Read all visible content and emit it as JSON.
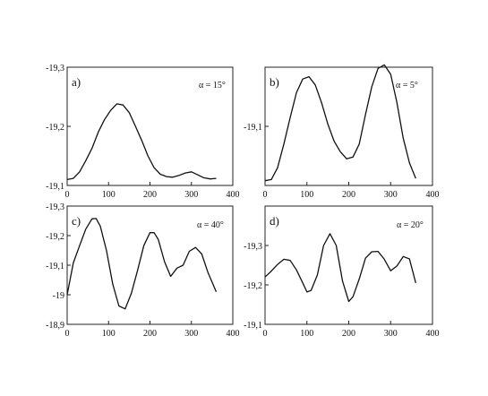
{
  "chart_data": [
    {
      "type": "line",
      "panel_label": "a)",
      "annotation": "α = 15°",
      "xlim": [
        0,
        400
      ],
      "ylim": [
        -19.3,
        -19.1
      ],
      "y_inverted": true,
      "x_ticks": [
        "0",
        "100",
        "200",
        "300",
        "400"
      ],
      "y_ticks": [
        {
          "value": -19.3,
          "label": "-19,3"
        },
        {
          "value": -19.2,
          "label": "-19,2"
        },
        {
          "value": -19.1,
          "label": "-19,1"
        }
      ],
      "series": [
        {
          "x": [
            0,
            15,
            30,
            45,
            60,
            75,
            90,
            105,
            120,
            135,
            150,
            165,
            180,
            195,
            210,
            225,
            240,
            255,
            270,
            285,
            300,
            315,
            330,
            345,
            360
          ],
          "y": [
            -19.11,
            -19.112,
            -19.123,
            -19.142,
            -19.163,
            -19.19,
            -19.211,
            -19.227,
            -19.238,
            -19.236,
            -19.223,
            -19.2,
            -19.176,
            -19.15,
            -19.13,
            -19.119,
            -19.115,
            -19.114,
            -19.117,
            -19.121,
            -19.123,
            -19.118,
            -19.113,
            -19.111,
            -19.112
          ]
        }
      ]
    },
    {
      "type": "line",
      "panel_label": "b)",
      "annotation": "α = 5°",
      "xlim": [
        0,
        400
      ],
      "ylim": [
        -19.2,
        -19.0
      ],
      "y_inverted": true,
      "x_ticks": [
        "0",
        "100",
        "200",
        "300",
        "400"
      ],
      "y_ticks": [
        {
          "value": -19.1,
          "label": "-19,1"
        }
      ],
      "series": [
        {
          "x": [
            0,
            15,
            30,
            45,
            60,
            75,
            90,
            105,
            120,
            135,
            150,
            165,
            180,
            195,
            210,
            225,
            240,
            255,
            270,
            285,
            300,
            315,
            330,
            345,
            360
          ],
          "y": [
            -19.008,
            -19.01,
            -19.03,
            -19.07,
            -19.115,
            -19.157,
            -19.18,
            -19.184,
            -19.17,
            -19.14,
            -19.104,
            -19.075,
            -19.057,
            -19.045,
            -19.048,
            -19.07,
            -19.12,
            -19.167,
            -19.198,
            -19.204,
            -19.188,
            -19.14,
            -19.08,
            -19.038,
            -19.012
          ]
        }
      ]
    },
    {
      "type": "line",
      "panel_label": "c)",
      "annotation": "α = 40°",
      "xlim": [
        0,
        400
      ],
      "ylim": [
        -19.3,
        -18.9
      ],
      "y_inverted": true,
      "x_ticks": [
        "0",
        "100",
        "200",
        "300",
        "400"
      ],
      "y_ticks": [
        {
          "value": -19.3,
          "label": "-19,3"
        },
        {
          "value": -19.2,
          "label": "-19,2"
        },
        {
          "value": -19.1,
          "label": "-19,1"
        },
        {
          "value": -19.0,
          "label": "-19"
        },
        {
          "value": -18.9,
          "label": "-18,9"
        }
      ],
      "series": [
        {
          "x": [
            0,
            15,
            30,
            45,
            60,
            70,
            80,
            95,
            110,
            125,
            140,
            155,
            170,
            185,
            200,
            210,
            220,
            235,
            250,
            265,
            280,
            295,
            310,
            325,
            340,
            360
          ],
          "y": [
            -19.0,
            -19.108,
            -19.166,
            -19.222,
            -19.257,
            -19.258,
            -19.232,
            -19.15,
            -19.036,
            -18.962,
            -18.952,
            -19.005,
            -19.082,
            -19.166,
            -19.21,
            -19.21,
            -19.187,
            -19.112,
            -19.062,
            -19.09,
            -19.1,
            -19.147,
            -19.16,
            -19.138,
            -19.075,
            -19.01
          ]
        }
      ]
    },
    {
      "type": "line",
      "panel_label": "d)",
      "annotation": "α = 20°",
      "xlim": [
        0,
        400
      ],
      "ylim": [
        -19.4,
        -19.1
      ],
      "y_inverted": true,
      "x_ticks": [
        "0",
        "100",
        "200",
        "300",
        "400"
      ],
      "y_ticks": [
        {
          "value": -19.3,
          "label": "-19,3"
        },
        {
          "value": -19.2,
          "label": "-19,2"
        },
        {
          "value": -19.1,
          "label": "-19,1"
        }
      ],
      "series": [
        {
          "x": [
            0,
            15,
            30,
            45,
            60,
            75,
            90,
            100,
            110,
            125,
            140,
            155,
            170,
            185,
            200,
            210,
            225,
            240,
            255,
            270,
            285,
            300,
            315,
            330,
            345,
            360
          ],
          "y": [
            -19.22,
            -19.235,
            -19.252,
            -19.265,
            -19.262,
            -19.238,
            -19.205,
            -19.182,
            -19.186,
            -19.225,
            -19.3,
            -19.33,
            -19.3,
            -19.21,
            -19.158,
            -19.17,
            -19.215,
            -19.268,
            -19.284,
            -19.285,
            -19.265,
            -19.236,
            -19.248,
            -19.272,
            -19.266,
            -19.205
          ]
        }
      ]
    }
  ]
}
